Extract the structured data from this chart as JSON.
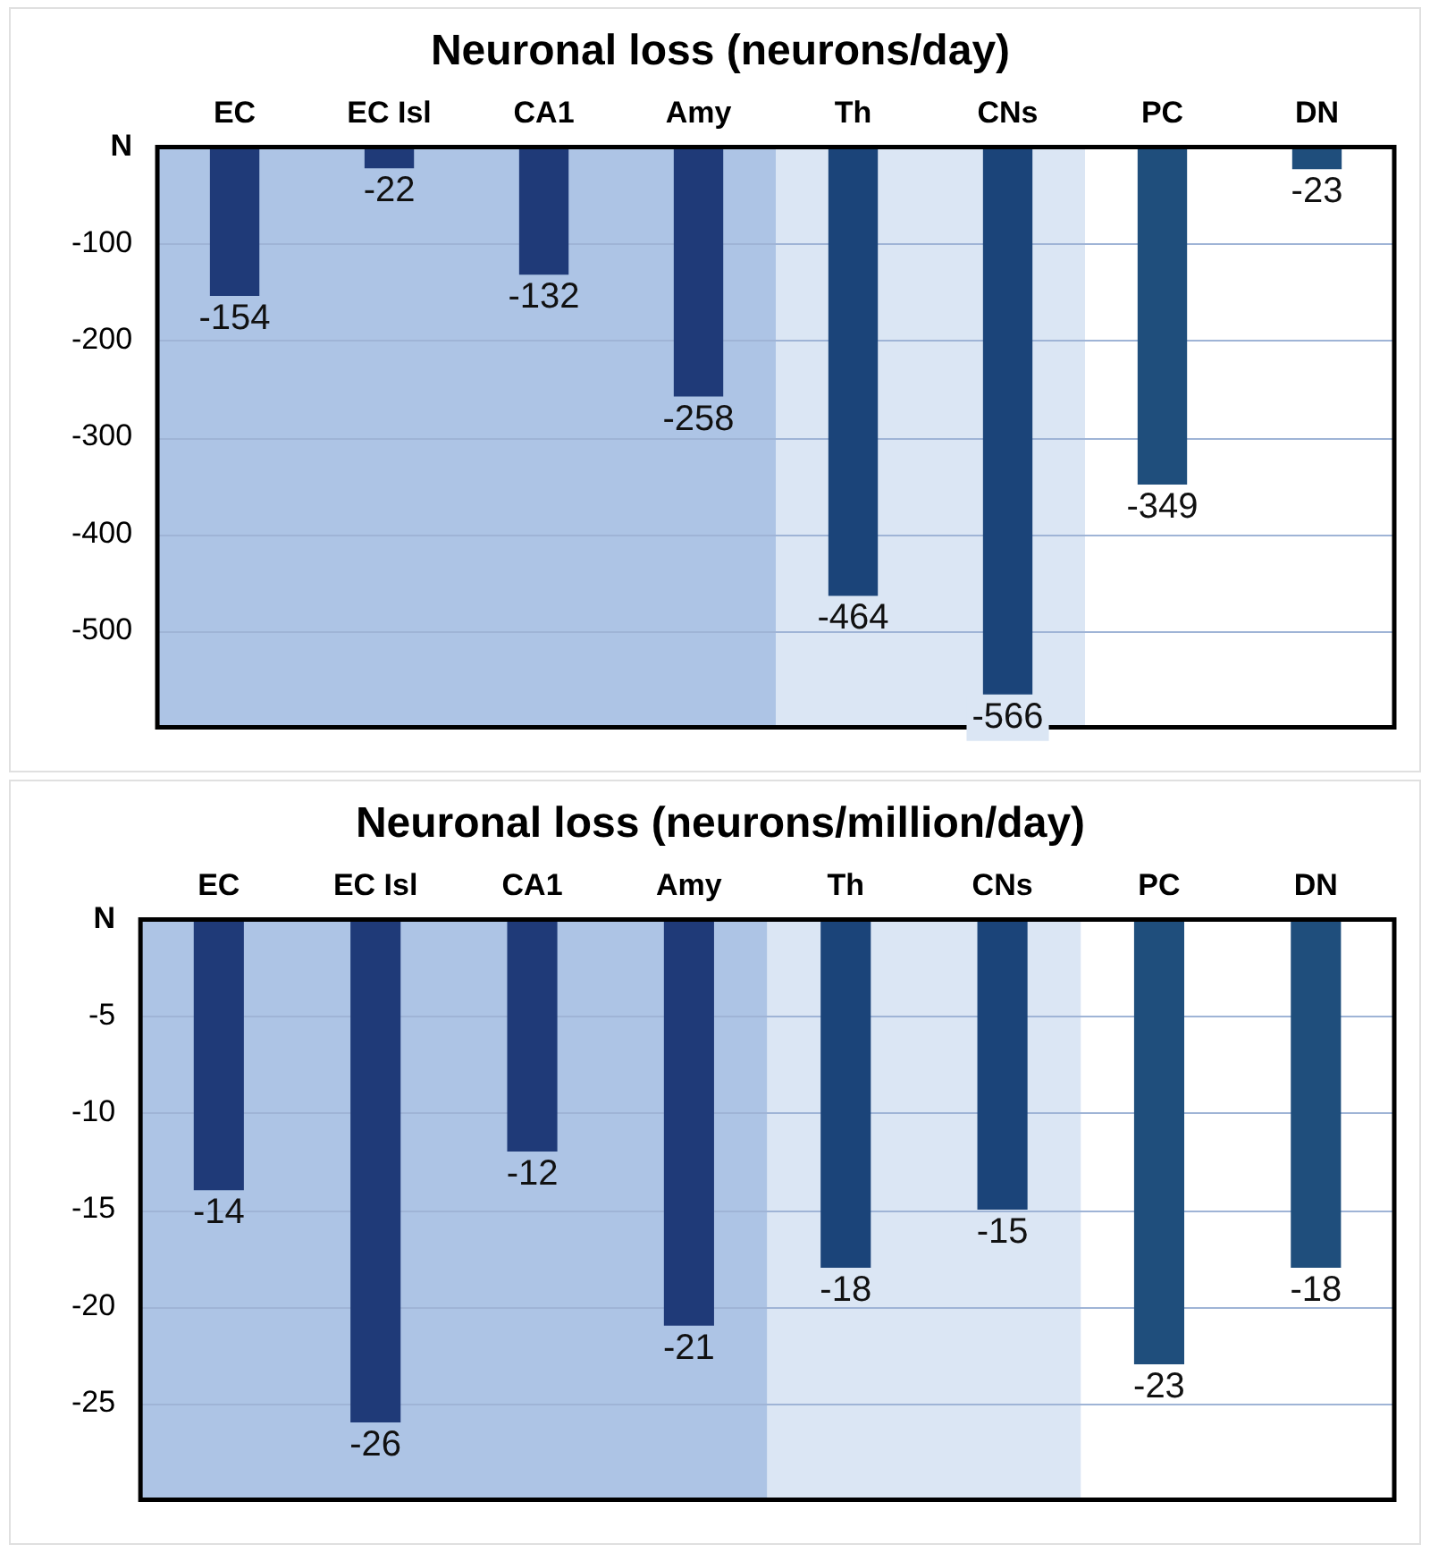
{
  "chart_data": [
    {
      "type": "bar",
      "title": "Neuronal loss (neurons/day)",
      "categories": [
        "EC",
        "EC Isl",
        "CA1",
        "Amy",
        "Th",
        "CNs",
        "PC",
        "DN"
      ],
      "values": [
        -154,
        -22,
        -132,
        -258,
        -464,
        -566,
        -349,
        -23
      ],
      "colors": [
        "#1f3a78",
        "#1f3a78",
        "#1f3a78",
        "#1f3a78",
        "#1b4479",
        "#1b4479",
        "#1f4e7c",
        "#1f4e7c"
      ],
      "ylim": [
        -600,
        0
      ],
      "yticks": [
        {
          "value": 0,
          "label": "N"
        },
        -100,
        -200,
        -300,
        -400,
        -500
      ],
      "grid": "y",
      "data_labels": true,
      "bands": [
        {
          "axis": "x",
          "from": "EC",
          "to": "Amy",
          "color": "#adc4e5"
        },
        {
          "axis": "x",
          "from": "Th",
          "to": "CNs",
          "color": "#dbe6f4"
        }
      ]
    },
    {
      "type": "bar",
      "title": "Neuronal loss (neurons/million/day)",
      "categories": [
        "EC",
        "EC Isl",
        "CA1",
        "Amy",
        "Th",
        "CNs",
        "PC",
        "DN"
      ],
      "values": [
        -14,
        -26,
        -12,
        -21,
        -18,
        -15,
        -23,
        -18
      ],
      "colors": [
        "#1f3a78",
        "#1f3a78",
        "#1f3a78",
        "#1f3a78",
        "#1b4479",
        "#1b4479",
        "#1f4e7c",
        "#1f4e7c"
      ],
      "ylim": [
        -30,
        0
      ],
      "yticks": [
        {
          "value": 0,
          "label": "N"
        },
        -5,
        -10,
        -15,
        -20,
        -25
      ],
      "grid": "y",
      "data_labels": true,
      "bands": [
        {
          "axis": "x",
          "from": "EC",
          "to": "Amy",
          "color": "#adc4e5"
        },
        {
          "axis": "x",
          "from": "Th",
          "to": "CNs",
          "color": "#dbe6f4"
        }
      ]
    }
  ]
}
